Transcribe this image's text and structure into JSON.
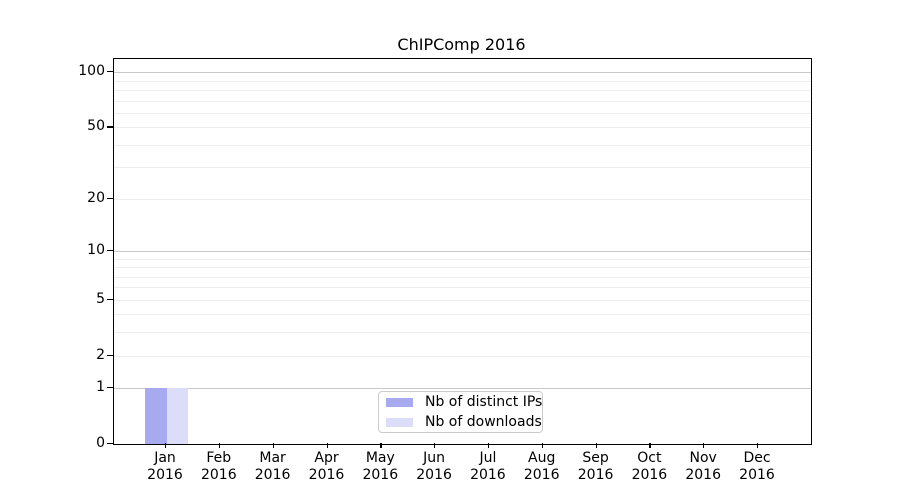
{
  "chart_data": {
    "type": "bar",
    "title": "ChIPComp 2016",
    "x_tick_labels": [
      [
        "Jan",
        "2016"
      ],
      [
        "Feb",
        "2016"
      ],
      [
        "Mar",
        "2016"
      ],
      [
        "Apr",
        "2016"
      ],
      [
        "May",
        "2016"
      ],
      [
        "Jun",
        "2016"
      ],
      [
        "Jul",
        "2016"
      ],
      [
        "Aug",
        "2016"
      ],
      [
        "Sep",
        "2016"
      ],
      [
        "Oct",
        "2016"
      ],
      [
        "Nov",
        "2016"
      ],
      [
        "Dec",
        "2016"
      ]
    ],
    "series": [
      {
        "name": "Nb of distinct IPs",
        "color": "#a8aaf0",
        "values": [
          1,
          0,
          0,
          0,
          0,
          0,
          0,
          0,
          0,
          0,
          0,
          0
        ]
      },
      {
        "name": "Nb of downloads",
        "color": "#dcddf8",
        "values": [
          1,
          0,
          0,
          0,
          0,
          0,
          0,
          0,
          0,
          0,
          0,
          0
        ]
      }
    ],
    "yscale": "log1p",
    "ylim": [
      0,
      118
    ],
    "yticks": [
      0,
      1,
      2,
      5,
      10,
      20,
      50,
      100
    ],
    "gridlines": {
      "major": [
        1,
        10,
        100
      ],
      "minor": [
        2,
        3,
        4,
        5,
        6,
        7,
        8,
        9,
        20,
        30,
        40,
        50,
        60,
        70,
        80,
        90
      ]
    },
    "legend_position": "lower center",
    "grid": true,
    "colors": {
      "grid_major": "#c9c9c9",
      "grid_minor": "#ededed",
      "axis": "#000000",
      "legend_border": "#cccccc",
      "background": "#ffffff",
      "text": "#000000"
    }
  }
}
